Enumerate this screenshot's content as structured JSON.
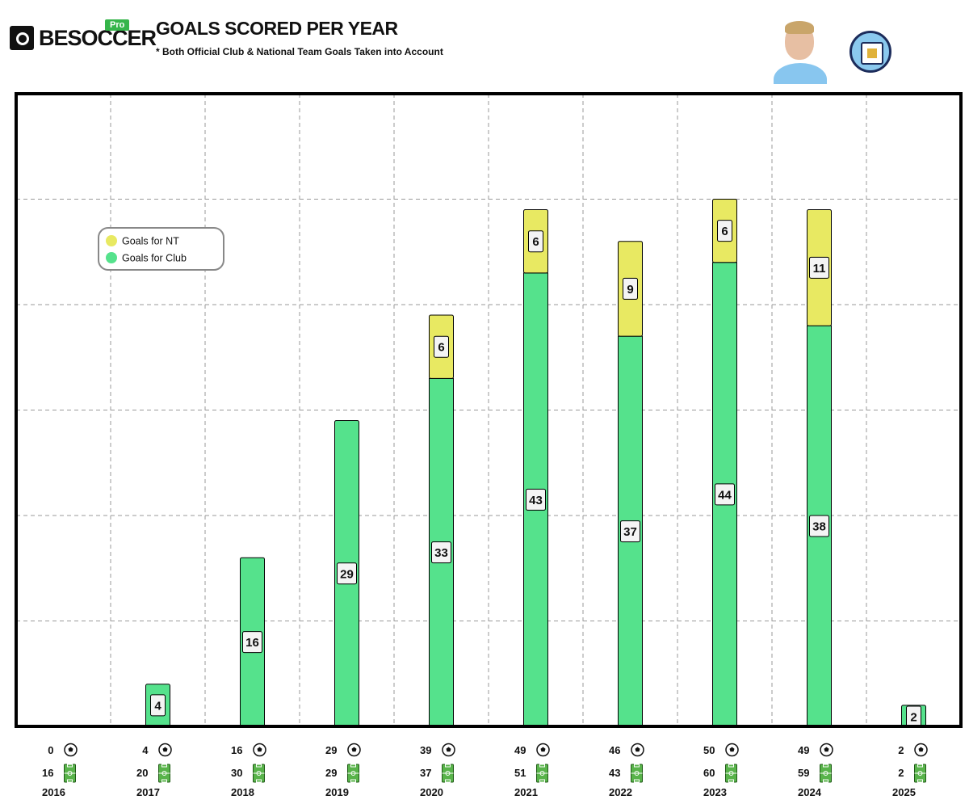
{
  "brand": {
    "name": "BESOCCER",
    "tag": "Pro"
  },
  "header": {
    "title": "GOALS SCORED PER YEAR",
    "subtitle": "* Both Official Club & National Team Goals Taken into Account"
  },
  "colors": {
    "club": "#55e28c",
    "nt": "#e8e962",
    "frame": "#000000",
    "grid": "#9a9a9a"
  },
  "chart_data": {
    "type": "bar",
    "stacked": true,
    "title": "GOALS SCORED PER YEAR",
    "categories": [
      "2016",
      "2017",
      "2018",
      "2019",
      "2020",
      "2021",
      "2022",
      "2023",
      "2024",
      "2025"
    ],
    "series": [
      {
        "name": "Goals for Club",
        "values": [
          0,
          4,
          16,
          29,
          33,
          43,
          37,
          44,
          38,
          2
        ]
      },
      {
        "name": "Goals for NT",
        "values": [
          0,
          0,
          0,
          0,
          6,
          6,
          9,
          6,
          11,
          0
        ]
      }
    ],
    "totals_goals": [
      "0",
      "4",
      "16",
      "29",
      "39",
      "49",
      "46",
      "50",
      "49",
      "2"
    ],
    "totals_matches": [
      "16",
      "20",
      "30",
      "29",
      "37",
      "51",
      "43",
      "60",
      "59",
      "2"
    ],
    "ylim": [
      0,
      60
    ],
    "grid": true,
    "legend": {
      "placement": "top-left",
      "entries": [
        "Goals for NT",
        "Goals for Club"
      ]
    },
    "xlabel": "",
    "ylabel": ""
  }
}
